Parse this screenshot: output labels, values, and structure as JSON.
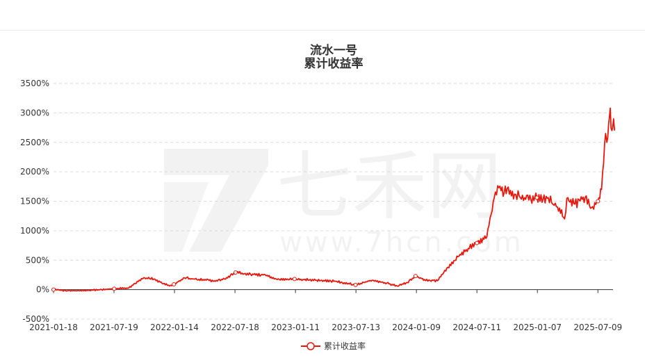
{
  "chart_data": {
    "type": "line",
    "title": "流水一号",
    "subtitle": "累计收益率",
    "watermark": "七禾网",
    "watermark_url": "www.7hcn.com",
    "x_ticks": [
      "2021-01-18",
      "2021-07-19",
      "2022-01-14",
      "2022-07-18",
      "2023-01-11",
      "2023-07-13",
      "2024-01-09",
      "2024-07-11",
      "2025-01-07",
      "2025-07-09"
    ],
    "y_ticks": [
      "3500%",
      "3000%",
      "2500%",
      "2000%",
      "1500%",
      "1000%",
      "500%",
      "0%",
      "-500%"
    ],
    "ylim": [
      -500,
      3500
    ],
    "y_unit": "%",
    "grid": "horizontal dashed",
    "legend_position": "bottom",
    "color": "#e8170c",
    "series": [
      {
        "name": "累计收益率",
        "x": [
          "2021-01-18",
          "2021-03-01",
          "2021-05-01",
          "2021-07-19",
          "2021-09-01",
          "2021-10-15",
          "2021-11-15",
          "2022-01-01",
          "2022-01-14",
          "2022-02-15",
          "2022-03-15",
          "2022-05-15",
          "2022-06-15",
          "2022-07-18",
          "2022-09-01",
          "2022-10-15",
          "2022-11-20",
          "2023-01-11",
          "2023-03-15",
          "2023-05-15",
          "2023-07-13",
          "2023-09-01",
          "2023-10-15",
          "2023-11-15",
          "2023-12-15",
          "2024-01-09",
          "2024-02-05",
          "2024-03-15",
          "2024-04-15",
          "2024-05-15",
          "2024-06-15",
          "2024-07-11",
          "2024-08-10",
          "2024-09-01",
          "2024-09-15",
          "2024-10-01",
          "2024-10-10",
          "2024-11-01",
          "2024-11-15",
          "2024-12-01",
          "2024-12-20",
          "2025-01-07",
          "2025-02-10",
          "2025-02-24",
          "2025-03-10",
          "2025-03-31",
          "2025-04-07",
          "2025-05-01",
          "2025-06-01",
          "2025-06-20",
          "2025-07-09",
          "2025-07-20",
          "2025-08-01",
          "2025-08-05",
          "2025-08-10",
          "2025-08-15",
          "2025-08-20",
          "2025-08-25",
          "2025-08-28"
        ],
        "values": [
          0,
          -20,
          -15,
          15,
          30,
          200,
          180,
          60,
          90,
          200,
          180,
          150,
          180,
          290,
          260,
          250,
          170,
          180,
          160,
          140,
          80,
          160,
          110,
          60,
          120,
          230,
          170,
          150,
          380,
          560,
          700,
          790,
          900,
          1560,
          1730,
          1650,
          1720,
          1620,
          1590,
          1560,
          1530,
          1560,
          1560,
          1450,
          1400,
          1200,
          1550,
          1450,
          1570,
          1390,
          1500,
          1700,
          2650,
          2500,
          2800,
          3080,
          2700,
          2900,
          2700
        ]
      }
    ]
  }
}
